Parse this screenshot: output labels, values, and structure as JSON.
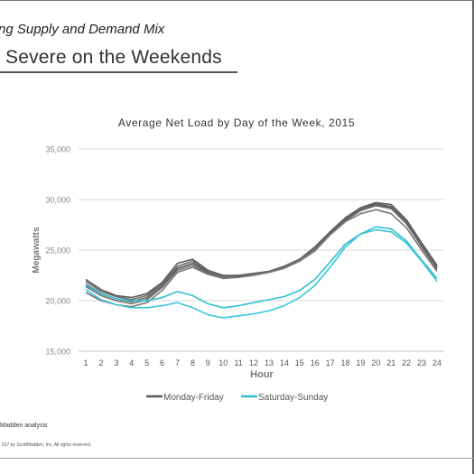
{
  "page": {
    "subtitle": "ng Supply and Demand Mix",
    "headline": "Severe on the Weekends",
    "source": "Madden analysis",
    "copyright": "017 by ScottMadden, Inc. All rights reserved."
  },
  "chart_data": {
    "type": "line",
    "title": "Average Net Load by Day of the Week, 2015",
    "xlabel": "Hour",
    "ylabel": "Megawatts",
    "x": [
      1,
      2,
      3,
      4,
      5,
      6,
      7,
      8,
      9,
      10,
      11,
      12,
      13,
      14,
      15,
      16,
      17,
      18,
      19,
      20,
      21,
      22,
      23,
      24
    ],
    "xlim": [
      1,
      24
    ],
    "ylim": [
      15000,
      35000
    ],
    "yticks": [
      15000,
      20000,
      25000,
      30000,
      35000
    ],
    "ytick_labels": [
      "15,000",
      "20,000",
      "25,000",
      "30,000",
      "35,000"
    ],
    "grid": true,
    "legend_position": "bottom",
    "legend": [
      {
        "label": "Monday-Friday",
        "color": "#5a5a5a"
      },
      {
        "label": "Saturday-Sunday",
        "color": "#2ebfd2"
      }
    ],
    "series": [
      {
        "group": "Monday-Friday",
        "color": "#5a5a5a",
        "values": [
          22100,
          21100,
          20500,
          20300,
          20700,
          21800,
          23700,
          24100,
          23000,
          22500,
          22500,
          22700,
          22900,
          23400,
          24100,
          25300,
          26800,
          28200,
          29200,
          29700,
          29500,
          28000,
          25700,
          23500
        ]
      },
      {
        "group": "Monday-Friday",
        "color": "#6a6a6a",
        "values": [
          21900,
          20900,
          20400,
          20100,
          20500,
          21700,
          23400,
          23900,
          22900,
          22400,
          22400,
          22600,
          22800,
          23300,
          24000,
          25200,
          26600,
          28100,
          29100,
          29600,
          29300,
          27800,
          25500,
          23300
        ]
      },
      {
        "group": "Monday-Friday",
        "color": "#5a5a5a",
        "values": [
          21600,
          20700,
          20200,
          19900,
          20300,
          21500,
          23200,
          23700,
          22800,
          22300,
          22400,
          22600,
          22800,
          23300,
          24000,
          25100,
          26700,
          28000,
          29000,
          29500,
          29200,
          27700,
          25400,
          23200
        ]
      },
      {
        "group": "Monday-Friday",
        "color": "#6f6f6f",
        "values": [
          21400,
          20500,
          20000,
          19700,
          20100,
          21300,
          23000,
          23500,
          22700,
          22300,
          22300,
          22600,
          22800,
          23300,
          24000,
          25100,
          26600,
          27900,
          28900,
          29400,
          29100,
          27600,
          25300,
          23100
        ]
      },
      {
        "group": "Monday-Friday",
        "color": "#777777",
        "values": [
          20800,
          20000,
          19600,
          19400,
          19800,
          21000,
          22800,
          23300,
          22600,
          22200,
          22300,
          22500,
          22800,
          23200,
          23900,
          24900,
          26500,
          27800,
          28600,
          29000,
          28600,
          27200,
          25000,
          22900
        ]
      },
      {
        "group": "Saturday-Sunday",
        "color": "#2ebfd2",
        "values": [
          21500,
          20700,
          20200,
          20000,
          20000,
          20300,
          20900,
          20500,
          19700,
          19300,
          19500,
          19800,
          20100,
          20400,
          21000,
          22100,
          23800,
          25600,
          26600,
          27300,
          27100,
          25900,
          24000,
          22200
        ]
      },
      {
        "group": "Saturday-Sunday",
        "color": "#38c6d8",
        "values": [
          21100,
          20100,
          19600,
          19300,
          19300,
          19500,
          19800,
          19300,
          18600,
          18300,
          18500,
          18700,
          19000,
          19500,
          20300,
          21500,
          23300,
          25300,
          26600,
          27000,
          26800,
          25700,
          23900,
          21900
        ]
      }
    ]
  }
}
